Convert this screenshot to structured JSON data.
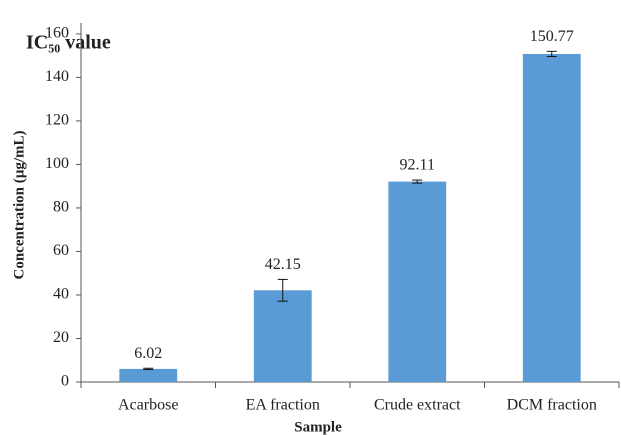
{
  "chart_data": {
    "type": "bar",
    "title": "IC₅₀ value",
    "x_label": "Sample",
    "y_label": "Concentration (µg/mL)",
    "categories": [
      "Acarbose",
      "EA fraction",
      "Crude extract",
      "DCM fraction"
    ],
    "values": [
      6.02,
      42.15,
      92.11,
      150.77
    ],
    "errors": [
      0.3,
      5,
      0.7,
      1.2
    ],
    "color": "#5b9bd5",
    "ylim": [
      0,
      165
    ],
    "yticks": [
      0,
      20,
      40,
      60,
      80,
      100,
      120,
      140,
      160
    ],
    "grid": false
  }
}
